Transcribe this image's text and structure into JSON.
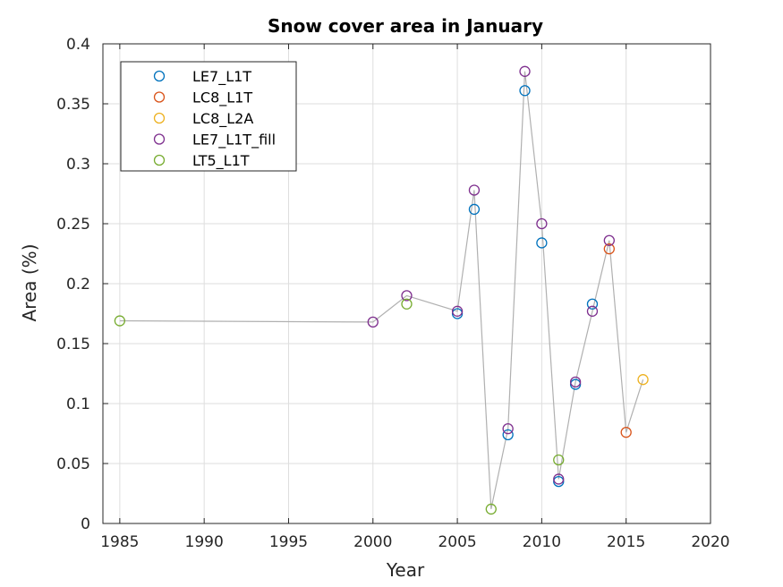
{
  "chart_data": {
    "type": "scatter",
    "title": "Snow cover area in January",
    "xlabel": "Year",
    "ylabel": "Area (%)",
    "xlim": [
      1984,
      2020
    ],
    "ylim": [
      0,
      0.4
    ],
    "x_ticks": [
      "1985",
      "1990",
      "1995",
      "2000",
      "2005",
      "2010",
      "2015",
      "2020"
    ],
    "y_ticks": [
      "0",
      "0.05",
      "0.1",
      "0.15",
      "0.2",
      "0.25",
      "0.3",
      "0.35",
      "0.4"
    ],
    "grid": true,
    "legend_position": "top-left",
    "connecting_line": {
      "color": "#b0b0b0",
      "x": [
        1985,
        2000,
        2002,
        2005,
        2006,
        2007,
        2008,
        2009,
        2010,
        2011,
        2012,
        2013,
        2014,
        2015,
        2016
      ],
      "y": [
        0.169,
        0.168,
        0.19,
        0.177,
        0.278,
        0.012,
        0.079,
        0.377,
        0.25,
        0.037,
        0.118,
        0.177,
        0.236,
        0.076,
        0.12
      ]
    },
    "series": [
      {
        "name": "LE7_L1T",
        "color": "#0072bd",
        "points": [
          {
            "x": 2005,
            "y": 0.175
          },
          {
            "x": 2006,
            "y": 0.262
          },
          {
            "x": 2008,
            "y": 0.074
          },
          {
            "x": 2009,
            "y": 0.361
          },
          {
            "x": 2010,
            "y": 0.234
          },
          {
            "x": 2011,
            "y": 0.035
          },
          {
            "x": 2012,
            "y": 0.116
          },
          {
            "x": 2013,
            "y": 0.183
          }
        ]
      },
      {
        "name": "LC8_L1T",
        "color": "#d95319",
        "points": [
          {
            "x": 2014,
            "y": 0.229
          },
          {
            "x": 2015,
            "y": 0.076
          }
        ]
      },
      {
        "name": "LC8_L2A",
        "color": "#edb120",
        "points": [
          {
            "x": 2016,
            "y": 0.12
          }
        ]
      },
      {
        "name": "LE7_L1T_fill",
        "color": "#7e2f8e",
        "points": [
          {
            "x": 2000,
            "y": 0.168
          },
          {
            "x": 2002,
            "y": 0.19
          },
          {
            "x": 2005,
            "y": 0.177
          },
          {
            "x": 2006,
            "y": 0.278
          },
          {
            "x": 2008,
            "y": 0.079
          },
          {
            "x": 2009,
            "y": 0.377
          },
          {
            "x": 2010,
            "y": 0.25
          },
          {
            "x": 2011,
            "y": 0.037
          },
          {
            "x": 2012,
            "y": 0.118
          },
          {
            "x": 2013,
            "y": 0.177
          },
          {
            "x": 2014,
            "y": 0.236
          }
        ]
      },
      {
        "name": "LT5_L1T",
        "color": "#77ac30",
        "points": [
          {
            "x": 1985,
            "y": 0.169
          },
          {
            "x": 2002,
            "y": 0.183
          },
          {
            "x": 2007,
            "y": 0.012
          },
          {
            "x": 2011,
            "y": 0.053
          }
        ]
      }
    ]
  }
}
